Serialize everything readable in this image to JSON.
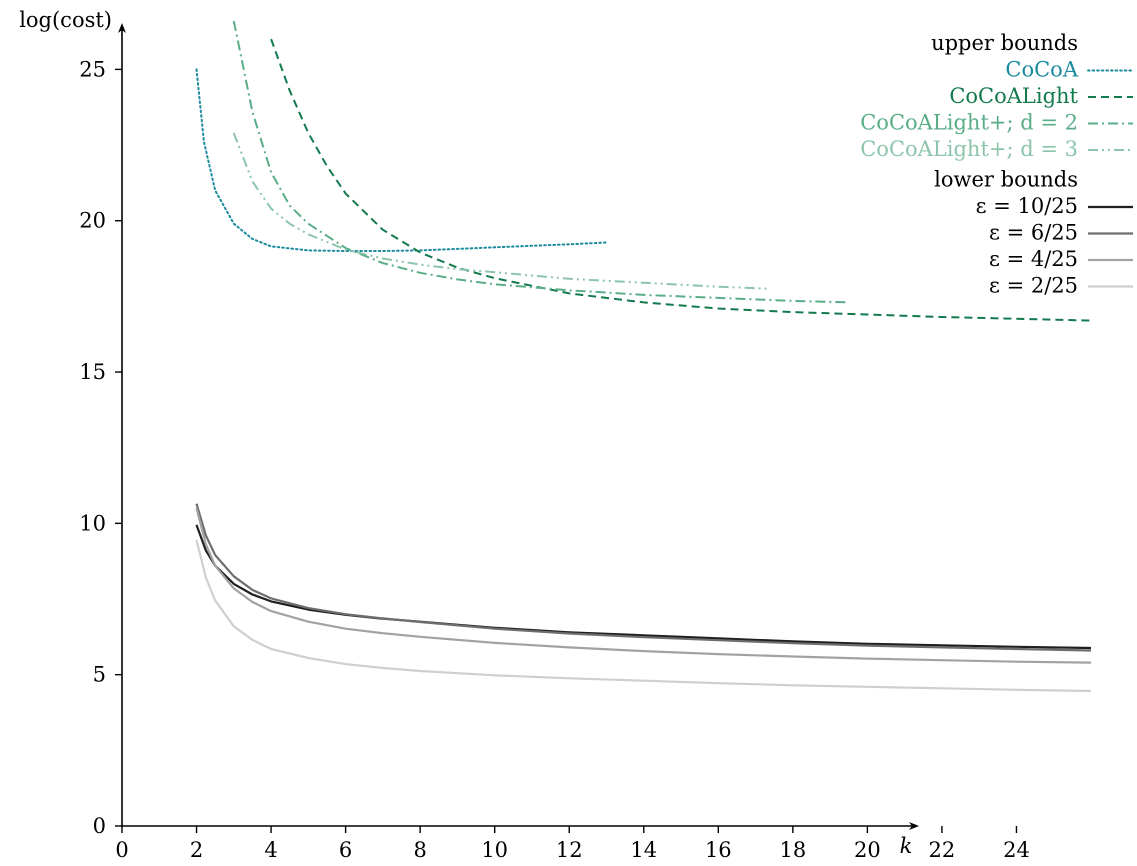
{
  "chart_data": {
    "type": "line",
    "xlabel": "k",
    "ylabel": "log(cost)",
    "xlim": [
      0,
      26
    ],
    "ylim": [
      0,
      26.5
    ],
    "xticks": [
      "0",
      "2",
      "4",
      "6",
      "8",
      "10",
      "12",
      "14",
      "16",
      "18",
      "20",
      "22",
      "24"
    ],
    "yticks": [
      "0",
      "5",
      "10",
      "15",
      "20",
      "25"
    ],
    "legend": {
      "placement": "top-right",
      "groups": [
        {
          "heading": "upper bounds",
          "entries": [
            "CoCoA",
            "CoCoALight",
            "CoCoALight+; d = 2",
            "CoCoALight+; d = 3"
          ]
        },
        {
          "heading": "lower bounds",
          "entries": [
            "ε = 10/25",
            "ε = 6/25",
            "ε = 4/25",
            "ε = 2/25"
          ]
        }
      ]
    },
    "series": [
      {
        "name": "CoCoA",
        "group": "upper",
        "color": "#1a8a9e",
        "style": "dotted",
        "x": [
          2,
          2.2,
          2.5,
          3,
          3.5,
          4,
          5,
          6,
          7,
          8,
          9,
          10,
          11,
          12,
          13
        ],
        "y": [
          25,
          22.6,
          21.0,
          19.9,
          19.4,
          19.15,
          19.02,
          19.0,
          19.0,
          19.02,
          19.07,
          19.12,
          19.17,
          19.22,
          19.28
        ]
      },
      {
        "name": "CoCoALight",
        "group": "upper",
        "color": "#137a4e",
        "style": "dashed",
        "x": [
          4,
          4.5,
          5,
          5.5,
          6,
          7,
          8,
          9,
          10,
          12,
          14,
          16,
          18,
          20,
          22,
          24,
          26
        ],
        "y": [
          26.0,
          24.3,
          22.9,
          21.8,
          20.9,
          19.7,
          18.95,
          18.45,
          18.1,
          17.6,
          17.3,
          17.1,
          16.98,
          16.9,
          16.82,
          16.76,
          16.7
        ]
      },
      {
        "name": "CoCoALight+; d = 2",
        "group": "upper",
        "color": "#5aad87",
        "style": "dashdot",
        "x": [
          3,
          3.5,
          4,
          4.5,
          5,
          6,
          7,
          8,
          9,
          10,
          12,
          14,
          16,
          18,
          19.5
        ],
        "y": [
          26.6,
          23.6,
          21.6,
          20.5,
          19.9,
          19.1,
          18.6,
          18.28,
          18.06,
          17.9,
          17.7,
          17.55,
          17.45,
          17.35,
          17.3
        ]
      },
      {
        "name": "CoCoALight+; d = 3",
        "group": "upper",
        "color": "#8cc5ab",
        "style": "dashdotdot",
        "x": [
          3,
          3.5,
          4,
          4.5,
          5,
          6,
          7,
          8,
          9,
          10,
          12,
          14,
          16,
          17.4
        ],
        "y": [
          22.9,
          21.3,
          20.4,
          19.9,
          19.55,
          19.05,
          18.75,
          18.55,
          18.4,
          18.3,
          18.08,
          17.95,
          17.82,
          17.75
        ]
      },
      {
        "name": "ε = 10/25",
        "group": "lower",
        "color": "#1f1f1f",
        "style": "solid",
        "x": [
          2,
          2.25,
          2.5,
          3,
          3.5,
          4,
          5,
          6,
          7,
          8,
          10,
          12,
          14,
          16,
          18,
          20,
          22,
          24,
          26
        ],
        "y": [
          9.95,
          9.1,
          8.6,
          8.0,
          7.65,
          7.42,
          7.15,
          6.98,
          6.85,
          6.75,
          6.55,
          6.4,
          6.3,
          6.2,
          6.1,
          6.02,
          5.97,
          5.92,
          5.88
        ]
      },
      {
        "name": "ε = 6/25",
        "group": "lower",
        "color": "#6e6e6e",
        "style": "solid",
        "x": [
          2,
          2.25,
          2.5,
          3,
          3.5,
          4,
          5,
          6,
          7,
          8,
          10,
          12,
          14,
          16,
          18,
          20,
          22,
          24,
          26
        ],
        "y": [
          10.65,
          9.6,
          8.95,
          8.25,
          7.8,
          7.52,
          7.2,
          7.0,
          6.86,
          6.74,
          6.52,
          6.36,
          6.24,
          6.14,
          6.04,
          5.96,
          5.9,
          5.85,
          5.8
        ]
      },
      {
        "name": "ε = 4/25",
        "group": "lower",
        "color": "#a2a2a2",
        "style": "solid",
        "x": [
          2,
          2.25,
          2.5,
          3,
          3.5,
          4,
          5,
          6,
          7,
          8,
          10,
          12,
          14,
          16,
          18,
          20,
          22,
          24,
          26
        ],
        "y": [
          10.5,
          9.3,
          8.6,
          7.85,
          7.4,
          7.1,
          6.75,
          6.52,
          6.37,
          6.25,
          6.05,
          5.9,
          5.78,
          5.68,
          5.6,
          5.53,
          5.48,
          5.43,
          5.4
        ]
      },
      {
        "name": "ε = 2/25",
        "group": "lower",
        "color": "#cfcfcf",
        "style": "solid",
        "x": [
          2,
          2.25,
          2.5,
          3,
          3.5,
          4,
          5,
          6,
          7,
          8,
          10,
          12,
          14,
          16,
          18,
          20,
          22,
          24,
          26
        ],
        "y": [
          9.45,
          8.2,
          7.45,
          6.6,
          6.15,
          5.85,
          5.55,
          5.35,
          5.22,
          5.12,
          4.98,
          4.88,
          4.8,
          4.72,
          4.65,
          4.6,
          4.55,
          4.5,
          4.46
        ]
      }
    ]
  }
}
